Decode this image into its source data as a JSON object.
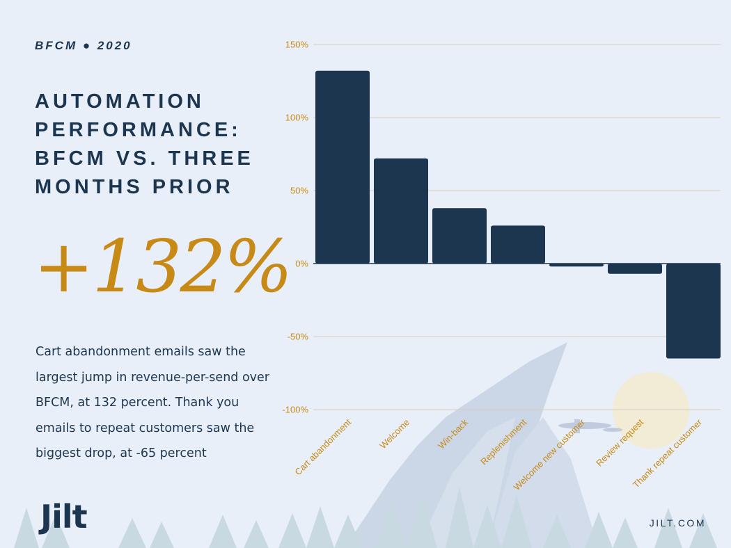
{
  "header": {
    "eyebrow": "BFCM ● 2020",
    "title_lines": [
      "AUTOMATION",
      "PERFORMANCE:",
      "BFCM VS. THREE",
      "MONTHS PRIOR"
    ],
    "big_stat": "+132%"
  },
  "body": {
    "text": "Cart abandonment emails saw the largest jump in revenue-per-send over BFCM, at 132 percent. Thank you emails to repeat customers saw the biggest drop, at -65 percent"
  },
  "footer": {
    "brand": "Jilt",
    "site": "JILT.COM"
  },
  "colors": {
    "background": "#e9eff8",
    "bar": "#1d3650",
    "accent": "#c78a16",
    "gridline": "#d8cfc0"
  },
  "chart_data": {
    "type": "bar",
    "categories": [
      "Cart abandonment",
      "Welcome",
      "Win-back",
      "Replenishment",
      "Welcome new customer",
      "Review request",
      "Thank repeat customer"
    ],
    "values": [
      132,
      72,
      38,
      26,
      -2,
      -7,
      -65
    ],
    "yticks": [
      "150%",
      "100%",
      "50%",
      "0%",
      "-50%",
      "-100%"
    ],
    "ytick_values": [
      150,
      100,
      50,
      0,
      -50,
      -100
    ],
    "ylim": [
      -100,
      150
    ],
    "grid": true
  }
}
